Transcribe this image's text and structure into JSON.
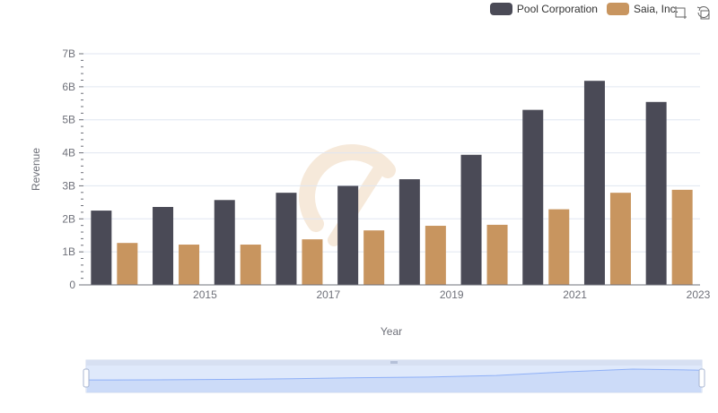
{
  "legend": {
    "items": [
      {
        "label": "Pool Corporation",
        "color": "#4a4a56"
      },
      {
        "label": "Saia, Inc.",
        "color": "#c8955f"
      }
    ]
  },
  "toolbox": {
    "icons": [
      "zoom-icon",
      "restore-icon"
    ]
  },
  "chart_data": {
    "type": "bar",
    "xlabel": "Year",
    "ylabel": "Revenue",
    "x": [
      2014,
      2015,
      2016,
      2017,
      2018,
      2019,
      2020,
      2021,
      2022,
      2023
    ],
    "x_tick_labels": [
      "2015",
      "2017",
      "2019",
      "2021",
      "2023"
    ],
    "y_tick_labels": [
      "0",
      "1B",
      "2B",
      "3B",
      "4B",
      "5B",
      "6B",
      "7B"
    ],
    "ylim": [
      0,
      7000000000
    ],
    "grid": true,
    "legend_position": "top-right",
    "series": [
      {
        "name": "Pool Corporation",
        "color": "#4a4a56",
        "values": [
          2250000000,
          2360000000,
          2570000000,
          2790000000,
          2998000000,
          3200000000,
          3940000000,
          5300000000,
          6180000000,
          5540000000
        ]
      },
      {
        "name": "Saia, Inc.",
        "color": "#c8955f",
        "values": [
          1270000000,
          1220000000,
          1220000000,
          1380000000,
          1650000000,
          1790000000,
          1820000000,
          2290000000,
          2790000000,
          2880000000
        ]
      }
    ]
  }
}
